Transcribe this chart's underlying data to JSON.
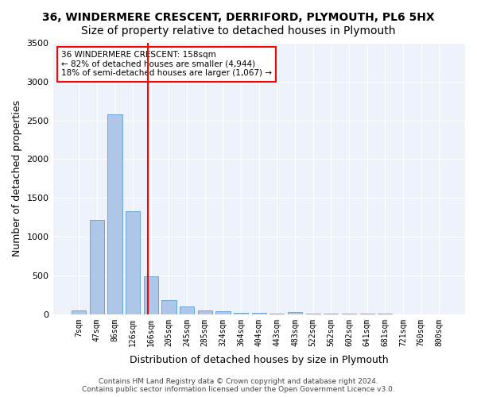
{
  "title1": "36, WINDERMERE CRESCENT, DERRIFORD, PLYMOUTH, PL6 5HX",
  "title2": "Size of property relative to detached houses in Plymouth",
  "xlabel": "Distribution of detached houses by size in Plymouth",
  "ylabel": "Number of detached properties",
  "categories": [
    "7sqm",
    "47sqm",
    "86sqm",
    "126sqm",
    "166sqm",
    "205sqm",
    "245sqm",
    "285sqm",
    "324sqm",
    "364sqm",
    "404sqm",
    "443sqm",
    "483sqm",
    "522sqm",
    "562sqm",
    "602sqm",
    "641sqm",
    "681sqm",
    "721sqm",
    "760sqm",
    "800sqm"
  ],
  "values": [
    50,
    1220,
    2580,
    1325,
    490,
    185,
    105,
    45,
    35,
    20,
    15,
    10,
    30,
    8,
    5,
    4,
    3,
    3,
    2,
    2,
    2
  ],
  "bar_color": "#aec6e8",
  "bar_edge_color": "#5a9fd4",
  "vline_x": 3.82,
  "vline_color": "red",
  "annotation_text": "36 WINDERMERE CRESCENT: 158sqm\n← 82% of detached houses are smaller (4,944)\n18% of semi-detached houses are larger (1,067) →",
  "annotation_box_color": "white",
  "annotation_box_edge": "red",
  "ylim": [
    0,
    3500
  ],
  "yticks": [
    0,
    500,
    1000,
    1500,
    2000,
    2500,
    3000,
    3500
  ],
  "bg_color": "#eef3fb",
  "grid_color": "white",
  "footer": "Contains HM Land Registry data © Crown copyright and database right 2024.\nContains public sector information licensed under the Open Government Licence v3.0.",
  "title1_fontsize": 10,
  "title2_fontsize": 10,
  "xlabel_fontsize": 9,
  "ylabel_fontsize": 9
}
